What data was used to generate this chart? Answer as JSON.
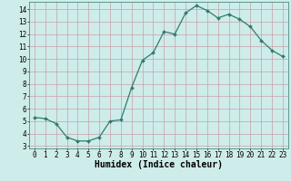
{
  "x": [
    0,
    1,
    2,
    3,
    4,
    5,
    6,
    7,
    8,
    9,
    10,
    11,
    12,
    13,
    14,
    15,
    16,
    17,
    18,
    19,
    20,
    21,
    22,
    23
  ],
  "y": [
    5.3,
    5.2,
    4.8,
    3.7,
    3.4,
    3.4,
    3.7,
    5.0,
    5.1,
    7.7,
    9.9,
    10.5,
    12.2,
    12.0,
    13.7,
    14.3,
    13.9,
    13.3,
    13.6,
    13.2,
    12.6,
    11.5,
    10.7,
    10.2
  ],
  "line_color": "#2e7d6e",
  "marker": "D",
  "marker_size": 2.0,
  "line_width": 0.9,
  "bg_color": "#ceecea",
  "grid_color": "#c8a0a8",
  "xlabel": "Humidex (Indice chaleur)",
  "xlim": [
    -0.5,
    23.5
  ],
  "ylim": [
    2.8,
    14.6
  ],
  "yticks": [
    3,
    4,
    5,
    6,
    7,
    8,
    9,
    10,
    11,
    12,
    13,
    14
  ],
  "xticks": [
    0,
    1,
    2,
    3,
    4,
    5,
    6,
    7,
    8,
    9,
    10,
    11,
    12,
    13,
    14,
    15,
    16,
    17,
    18,
    19,
    20,
    21,
    22,
    23
  ],
  "tick_label_fontsize": 5.5,
  "xlabel_fontsize": 7.0
}
